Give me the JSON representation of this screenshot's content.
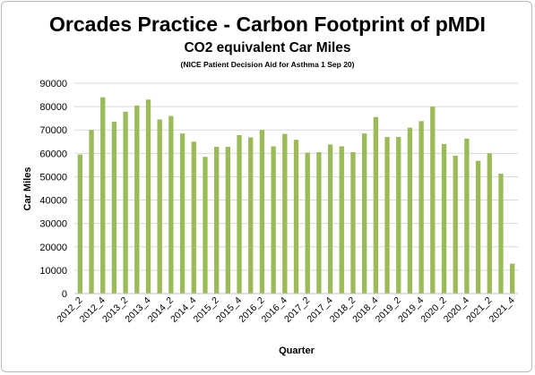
{
  "chart_data": {
    "type": "bar",
    "title": "Orcades Practice - Carbon Footprint of pMDI",
    "subtitle": "CO2 equivalent Car Miles",
    "note": "(NICE Patient Decision Aid for Asthma 1 Sep 20)",
    "xlabel": "Quarter",
    "ylabel": "Car Miles",
    "ylim": [
      0,
      90000
    ],
    "yticks": [
      0,
      10000,
      20000,
      30000,
      40000,
      50000,
      60000,
      70000,
      80000,
      90000
    ],
    "grid": true,
    "bar_color": "#9bbb59",
    "grid_color": "#d9d9d9",
    "categories": [
      "2012_2",
      "2012_3",
      "2012_4",
      "2013_1",
      "2013_2",
      "2013_3",
      "2013_4",
      "2014_1",
      "2014_2",
      "2014_3",
      "2014_4",
      "2015_1",
      "2015_2",
      "2015_3",
      "2015_4",
      "2016_1",
      "2016_2",
      "2016_3",
      "2016_4",
      "2017_1",
      "2017_2",
      "2017_3",
      "2017_4",
      "2018_1",
      "2018_2",
      "2018_3",
      "2018_4",
      "2019_1",
      "2019_2",
      "2019_3",
      "2019_4",
      "2020_1",
      "2020_2",
      "2020_3",
      "2020_4",
      "2021_1",
      "2021_2",
      "2021_3",
      "2021_4"
    ],
    "tick_labels": [
      "2012_2",
      "2012_4",
      "2013_2",
      "2013_4",
      "2014_2",
      "2014_4",
      "2015_2",
      "2015_4",
      "2016_2",
      "2016_4",
      "2017_2",
      "2017_4",
      "2018_2",
      "2018_4",
      "2019_2",
      "2019_4",
      "2020_2",
      "2020_4",
      "2021_2",
      "2021_4"
    ],
    "values": [
      59500,
      70000,
      84000,
      73500,
      77800,
      80500,
      83000,
      74500,
      76000,
      68500,
      65000,
      58500,
      62800,
      62800,
      67800,
      66800,
      70000,
      63000,
      68300,
      65800,
      60300,
      60500,
      63800,
      63000,
      60500,
      68500,
      75500,
      67000,
      67000,
      71000,
      73800,
      80000,
      64000,
      59000,
      66300,
      56800,
      60000,
      51300,
      12800
    ]
  }
}
